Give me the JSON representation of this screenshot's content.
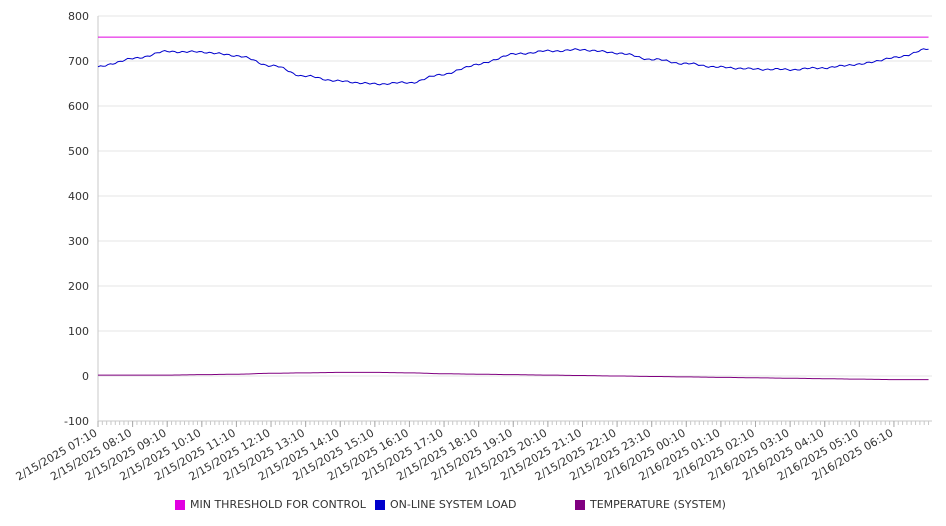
{
  "chart_data": {
    "type": "line",
    "title": "",
    "xlabel": "",
    "ylabel": "",
    "ylim": [
      -100,
      800
    ],
    "yticks": [
      -100,
      0,
      100,
      200,
      300,
      400,
      500,
      600,
      700,
      800
    ],
    "grid": true,
    "legend_position": "bottom",
    "x_start": "2/15/2025 07:10",
    "x_end": "2/16/2025 07:10",
    "xtick_labels": [
      "2/15/2025 07:10",
      "2/15/2025 08:10",
      "2/15/2025 09:10",
      "2/15/2025 10:10",
      "2/15/2025 11:10",
      "2/15/2025 12:10",
      "2/15/2025 13:10",
      "2/15/2025 14:10",
      "2/15/2025 15:10",
      "2/15/2025 16:10",
      "2/15/2025 17:10",
      "2/15/2025 18:10",
      "2/15/2025 19:10",
      "2/15/2025 20:10",
      "2/15/2025 21:10",
      "2/15/2025 22:10",
      "2/15/2025 23:10",
      "2/16/2025 00:10",
      "2/16/2025 01:10",
      "2/16/2025 02:10",
      "2/16/2025 03:10",
      "2/16/2025 04:10",
      "2/16/2025 05:10",
      "2/16/2025 06:10"
    ],
    "x": [
      "2/15/2025 07:10",
      "2/15/2025 08:10",
      "2/15/2025 09:10",
      "2/15/2025 10:10",
      "2/15/2025 11:10",
      "2/15/2025 12:10",
      "2/15/2025 13:10",
      "2/15/2025 14:10",
      "2/15/2025 15:10",
      "2/15/2025 16:10",
      "2/15/2025 17:10",
      "2/15/2025 18:10",
      "2/15/2025 19:10",
      "2/15/2025 20:10",
      "2/15/2025 21:10",
      "2/15/2025 22:10",
      "2/15/2025 23:10",
      "2/16/2025 00:10",
      "2/16/2025 01:10",
      "2/16/2025 02:10",
      "2/16/2025 03:10",
      "2/16/2025 04:10",
      "2/16/2025 05:10",
      "2/16/2025 06:10",
      "2/16/2025 07:10"
    ],
    "series": [
      {
        "name": "MIN THRESHOLD FOR CONTROL",
        "color": "#e100e1",
        "values": [
          753,
          753,
          753,
          753,
          753,
          753,
          753,
          753,
          753,
          753,
          753,
          753,
          753,
          753,
          753,
          753,
          753,
          753,
          753,
          753,
          753,
          753,
          753,
          753,
          753
        ]
      },
      {
        "name": "ON-LINE SYSTEM LOAD",
        "color": "#0000cc",
        "values": [
          687,
          705,
          721,
          720,
          712,
          690,
          666,
          655,
          649,
          652,
          671,
          693,
          715,
          722,
          725,
          718,
          704,
          694,
          686,
          682,
          681,
          685,
          693,
          707,
          726
        ]
      },
      {
        "name": "TEMPERATURE (SYSTEM)",
        "color": "#800080",
        "values": [
          2,
          2,
          2,
          3,
          4,
          6,
          7,
          8,
          8,
          7,
          5,
          4,
          3,
          2,
          1,
          0,
          -1,
          -2,
          -3,
          -4,
          -5,
          -6,
          -7,
          -8,
          -8
        ]
      }
    ]
  }
}
